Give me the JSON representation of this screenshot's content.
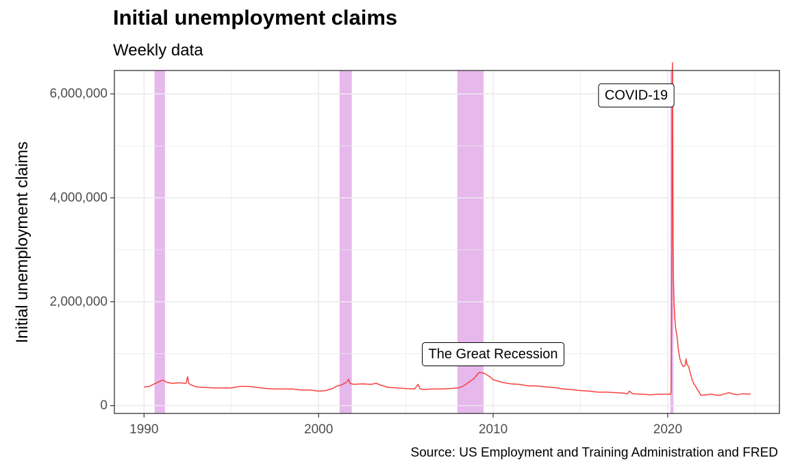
{
  "title": "Initial unemployment claims",
  "subtitle": "Weekly data",
  "caption": "Source: US Employment and Training Administration and FRED",
  "colors": {
    "line": "#F8403F",
    "recession": "#E6B8EC",
    "grid": "#EBEBEB",
    "panel_border": "#333333"
  },
  "chart_data": {
    "type": "line",
    "title": "Initial unemployment claims",
    "subtitle": "Weekly data",
    "xlabel": "",
    "ylabel": "Initial unemployment claims",
    "xlim": [
      1988.3,
      2026.4
    ],
    "ylim": [
      -150000,
      6450000
    ],
    "x_ticks": [
      1990,
      2000,
      2010,
      2020
    ],
    "x_tick_labels": [
      "1990",
      "2000",
      "2010",
      "2020"
    ],
    "y_ticks": [
      0,
      2000000,
      4000000,
      6000000
    ],
    "y_tick_labels": [
      "0",
      "2,000,000",
      "4,000,000",
      "6,000,000"
    ],
    "grid": true,
    "recessions": [
      {
        "start": 1990.6,
        "end": 1991.2
      },
      {
        "start": 2001.2,
        "end": 2001.9
      },
      {
        "start": 2007.95,
        "end": 2009.45
      },
      {
        "start": 2020.15,
        "end": 2020.33
      }
    ],
    "annotations": [
      {
        "label": "The Great Recession",
        "x": 2010.0,
        "y": 990000
      },
      {
        "label": "COVID-19",
        "x": 2018.2,
        "y": 5970000
      }
    ],
    "series": [
      {
        "x": [
          1990.0,
          1990.3,
          1990.6,
          1990.9,
          1991.1,
          1991.3,
          1991.6,
          1992.0,
          1992.4,
          1992.5,
          1992.55,
          1992.7,
          1993.0,
          1993.5,
          1994.0,
          1994.5,
          1995.0,
          1995.5,
          1996.0,
          1996.5,
          1997.0,
          1997.5,
          1998.0,
          1998.5,
          1999.0,
          1999.5,
          2000.0,
          2000.4,
          2000.8,
          2001.0,
          2001.3,
          2001.6,
          2001.72,
          2001.8,
          2002.0,
          2002.5,
          2003.0,
          2003.3,
          2003.6,
          2004.0,
          2004.5,
          2005.0,
          2005.5,
          2005.7,
          2005.8,
          2006.0,
          2006.5,
          2007.0,
          2007.5,
          2008.0,
          2008.3,
          2008.6,
          2008.9,
          2009.2,
          2009.5,
          2009.8,
          2010.0,
          2010.5,
          2011.0,
          2011.5,
          2012.0,
          2012.5,
          2013.0,
          2013.5,
          2014.0,
          2014.5,
          2015.0,
          2015.5,
          2016.0,
          2016.5,
          2017.0,
          2017.5,
          2017.7,
          2017.8,
          2018.0,
          2018.5,
          2019.0,
          2019.5,
          2020.0,
          2020.17,
          2020.2,
          2020.24,
          2020.25,
          2020.27,
          2020.29,
          2020.31,
          2020.33,
          2020.36,
          2020.4,
          2020.45,
          2020.5,
          2020.55,
          2020.6,
          2020.7,
          2020.8,
          2020.9,
          2021.0,
          2021.05,
          2021.1,
          2021.2,
          2021.3,
          2021.4,
          2021.5,
          2021.6,
          2021.7,
          2021.8,
          2021.9,
          2022.0,
          2022.2,
          2022.5,
          2022.8,
          2023.0,
          2023.3,
          2023.5,
          2023.8,
          2024.0,
          2024.3,
          2024.6,
          2024.75
        ],
        "y": [
          360000,
          370000,
          420000,
          470000,
          490000,
          450000,
          430000,
          440000,
          430000,
          560000,
          430000,
          400000,
          360000,
          350000,
          340000,
          340000,
          340000,
          370000,
          370000,
          350000,
          330000,
          320000,
          320000,
          320000,
          300000,
          300000,
          280000,
          290000,
          330000,
          370000,
          400000,
          450000,
          510000,
          430000,
          410000,
          420000,
          410000,
          430000,
          390000,
          350000,
          340000,
          330000,
          320000,
          410000,
          330000,
          310000,
          320000,
          320000,
          330000,
          340000,
          380000,
          450000,
          520000,
          640000,
          620000,
          560000,
          500000,
          450000,
          420000,
          410000,
          380000,
          380000,
          360000,
          350000,
          320000,
          310000,
          290000,
          280000,
          260000,
          260000,
          250000,
          240000,
          230000,
          280000,
          230000,
          220000,
          210000,
          220000,
          220000,
          220000,
          280000,
          3300000,
          6150000,
          6600000,
          4800000,
          3200000,
          2400000,
          2000000,
          1700000,
          1500000,
          1400000,
          1300000,
          1100000,
          900000,
          800000,
          750000,
          780000,
          900000,
          800000,
          750000,
          620000,
          500000,
          420000,
          370000,
          310000,
          260000,
          200000,
          200000,
          210000,
          220000,
          200000,
          200000,
          230000,
          250000,
          220000,
          210000,
          230000,
          220000,
          230000
        ]
      }
    ]
  }
}
